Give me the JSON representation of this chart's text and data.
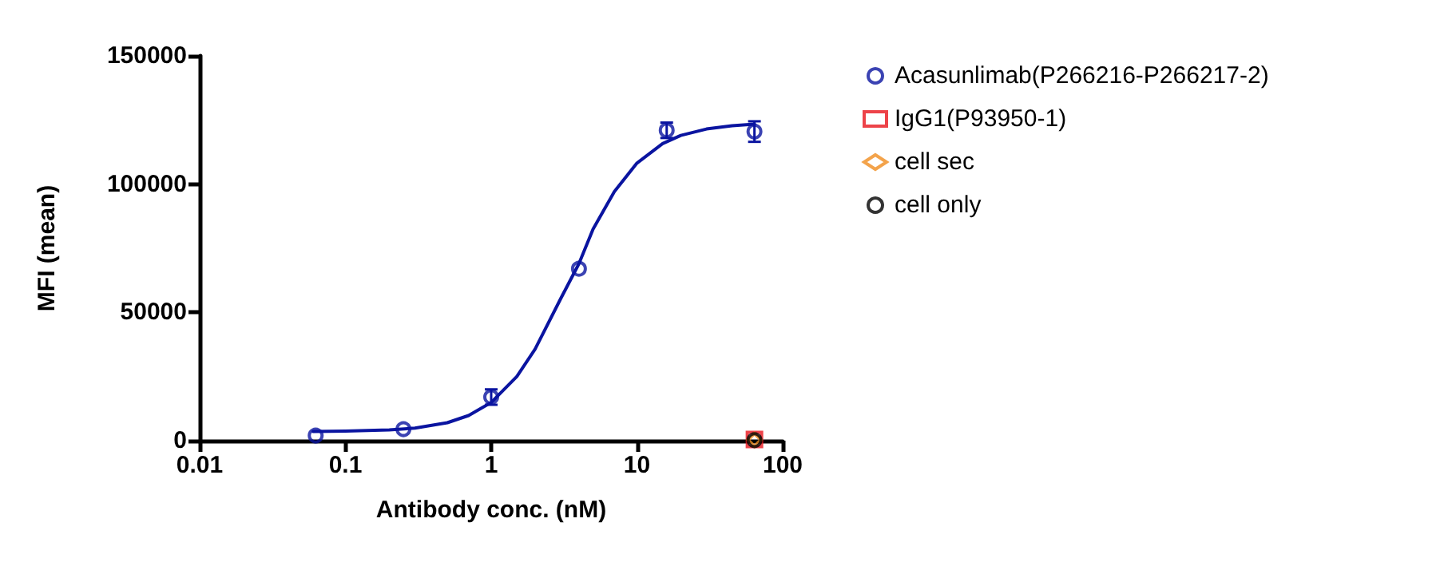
{
  "chart_data": {
    "type": "scatter",
    "xlabel": "Antibody conc. (nM)",
    "ylabel": "MFI (mean)",
    "log": "x",
    "xlim": [
      0.01,
      100
    ],
    "xticks": [
      0.01,
      0.1,
      1,
      10,
      100
    ],
    "ylim": [
      0,
      150000
    ],
    "yticks": [
      0,
      50000,
      100000,
      150000
    ],
    "grid": false,
    "legend": "right",
    "series": [
      {
        "name": "Acasunlimab(P266216-P266217-2)",
        "marker": "circle",
        "color": "#0a14a0",
        "x": [
          0.0625,
          0.25,
          1,
          4,
          16,
          64
        ],
        "values": [
          2000,
          4500,
          17000,
          67000,
          121000,
          120500
        ],
        "errors": [
          null,
          null,
          3000,
          null,
          3000,
          4000
        ]
      },
      {
        "type": "line",
        "marker": "none",
        "color": "#0a14a0",
        "x": [
          0.06,
          0.1,
          0.2,
          0.3,
          0.5,
          0.7,
          1,
          1.5,
          2,
          3,
          4,
          5,
          7,
          10,
          15,
          20,
          30,
          45,
          64
        ],
        "values": [
          3600,
          3700,
          4200,
          4900,
          7000,
          9800,
          14900,
          25000,
          35700,
          55400,
          69000,
          82500,
          97100,
          108200,
          115800,
          119000,
          121500,
          122800,
          123400
        ]
      },
      {
        "name": "IgG1(P93950-1)",
        "marker": "square",
        "color": "#e8141c",
        "x": [
          64
        ],
        "values": [
          500
        ]
      },
      {
        "name": "cell sec",
        "marker": "diamond",
        "color": "#f08c1e",
        "x": [
          64
        ],
        "values": [
          300
        ]
      },
      {
        "name": "cell only",
        "marker": "circle",
        "color": "#000000",
        "x": [
          64
        ],
        "values": [
          200
        ]
      }
    ]
  }
}
